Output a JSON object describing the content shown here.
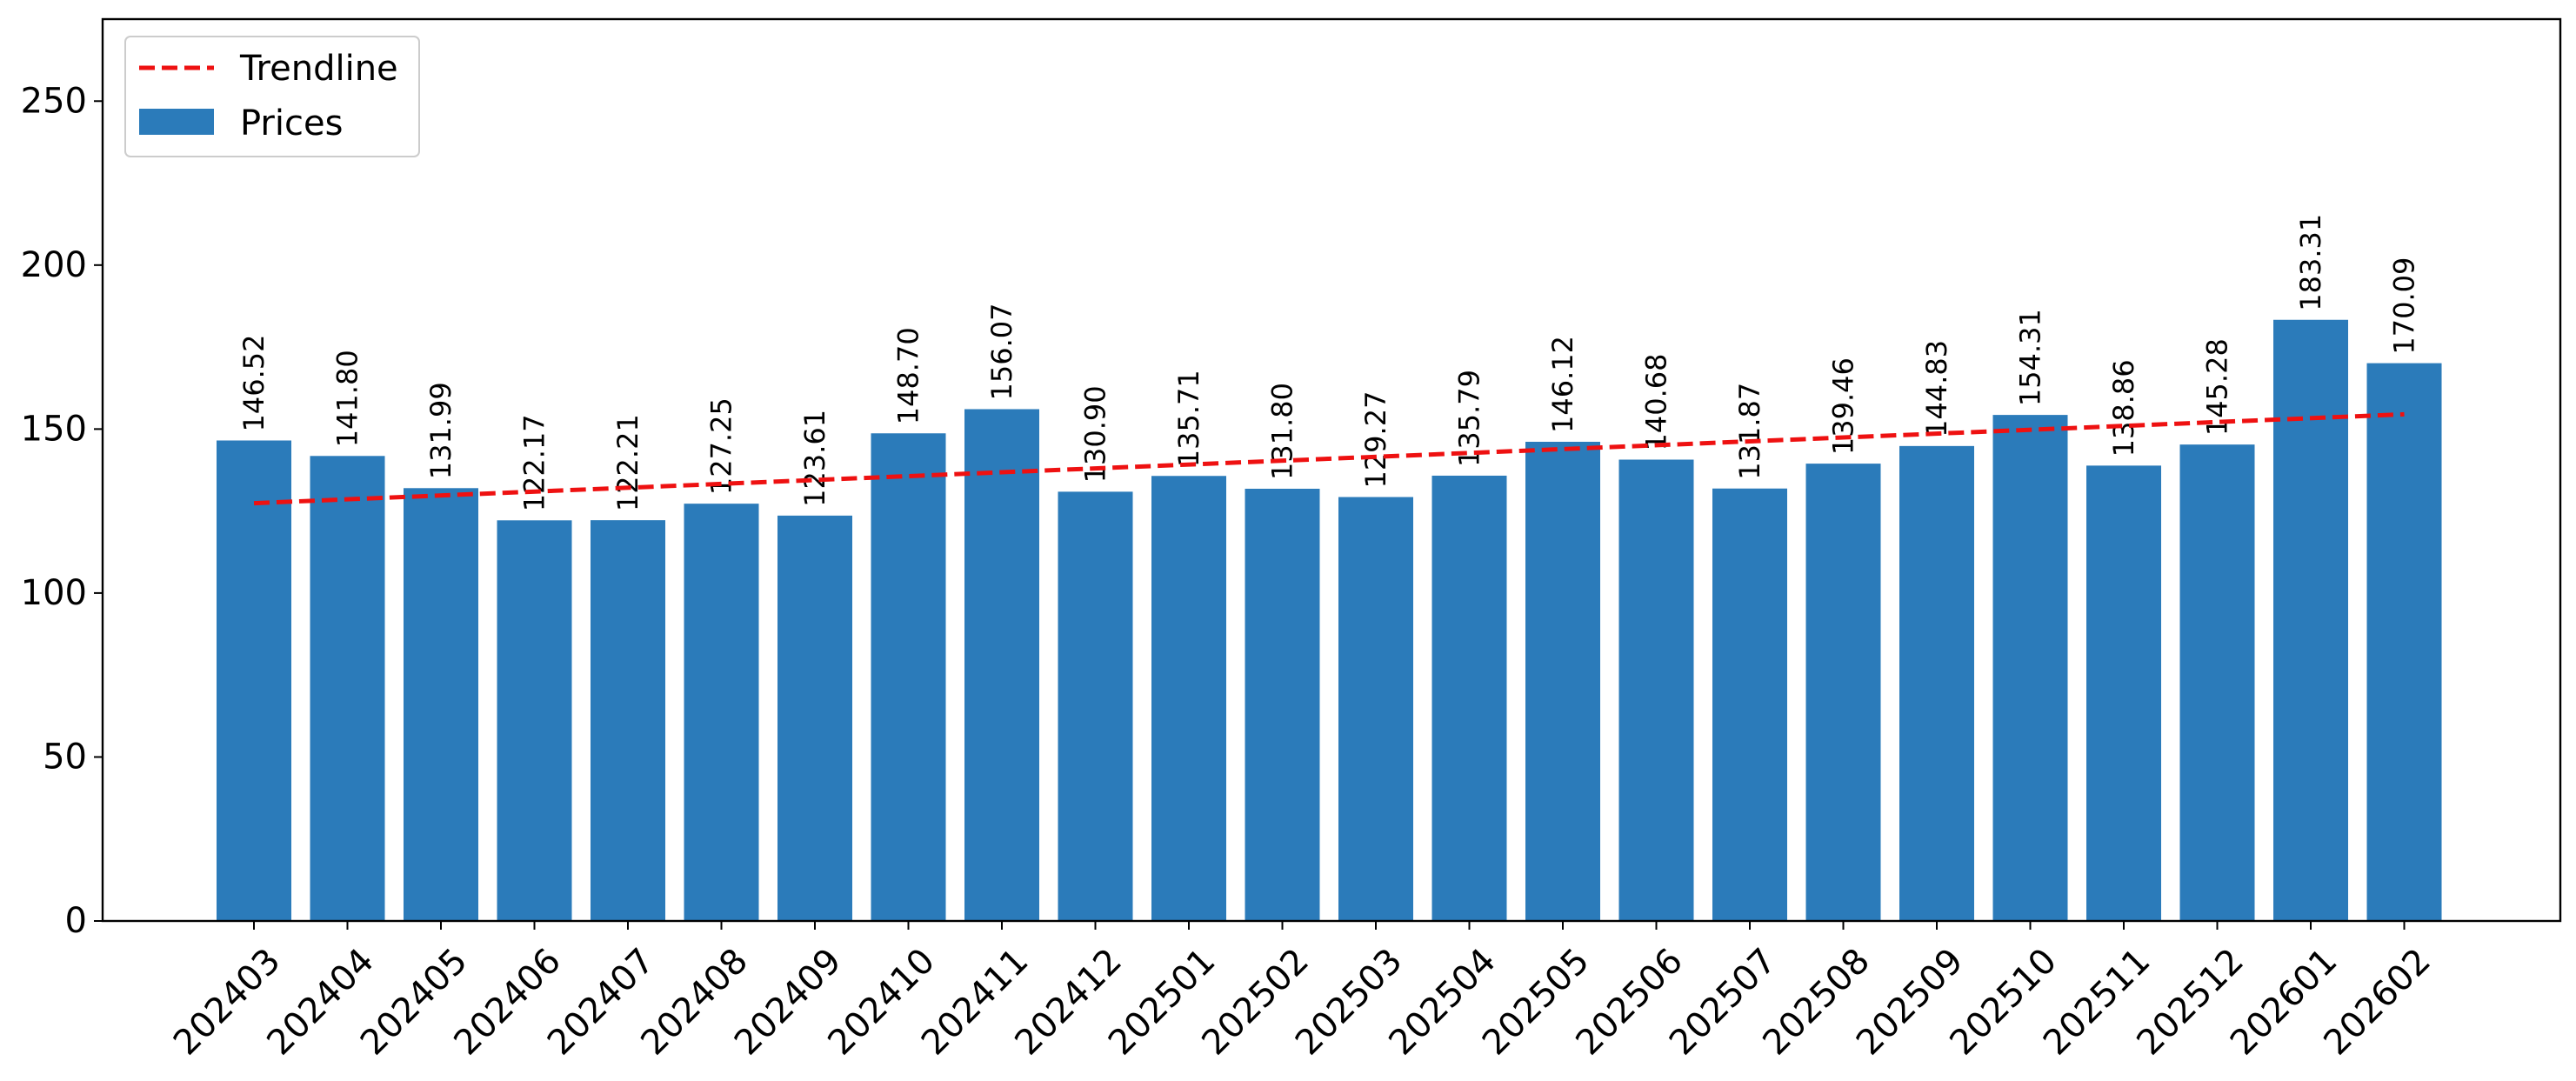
{
  "chart_data": {
    "type": "bar",
    "categories": [
      "202403",
      "202404",
      "202405",
      "202406",
      "202407",
      "202408",
      "202409",
      "202410",
      "202411",
      "202412",
      "202501",
      "202502",
      "202503",
      "202504",
      "202505",
      "202506",
      "202507",
      "202508",
      "202509",
      "202510",
      "202511",
      "202512",
      "202601",
      "202602"
    ],
    "series": [
      {
        "name": "Prices",
        "values": [
          146.52,
          141.8,
          131.99,
          122.17,
          122.21,
          127.25,
          123.61,
          148.7,
          156.07,
          130.9,
          135.71,
          131.8,
          129.27,
          135.79,
          146.12,
          140.68,
          131.87,
          139.46,
          144.83,
          154.31,
          138.86,
          145.28,
          183.31,
          170.09
        ],
        "labels": [
          "146.52",
          "141.80",
          "131.99",
          "122.17",
          "122.21",
          "127.25",
          "123.61",
          "148.70",
          "156.07",
          "130.90",
          "135.71",
          "131.80",
          "129.27",
          "135.79",
          "146.12",
          "140.68",
          "131.87",
          "139.46",
          "144.83",
          "154.31",
          "138.86",
          "145.28",
          "183.31",
          "170.09"
        ],
        "color": "#2b7bba"
      }
    ],
    "trendline": {
      "name": "Trendline",
      "start": 127.4,
      "end": 154.5,
      "color": "#ee1111",
      "style": "dashed"
    },
    "ylim": [
      0,
      275
    ],
    "yticks": [
      0,
      50,
      100,
      150,
      200,
      250
    ],
    "xlabel": "",
    "ylabel": "",
    "title": "",
    "grid": false,
    "legend": {
      "position": "top-left",
      "entries": [
        "Trendline",
        "Prices"
      ]
    }
  }
}
